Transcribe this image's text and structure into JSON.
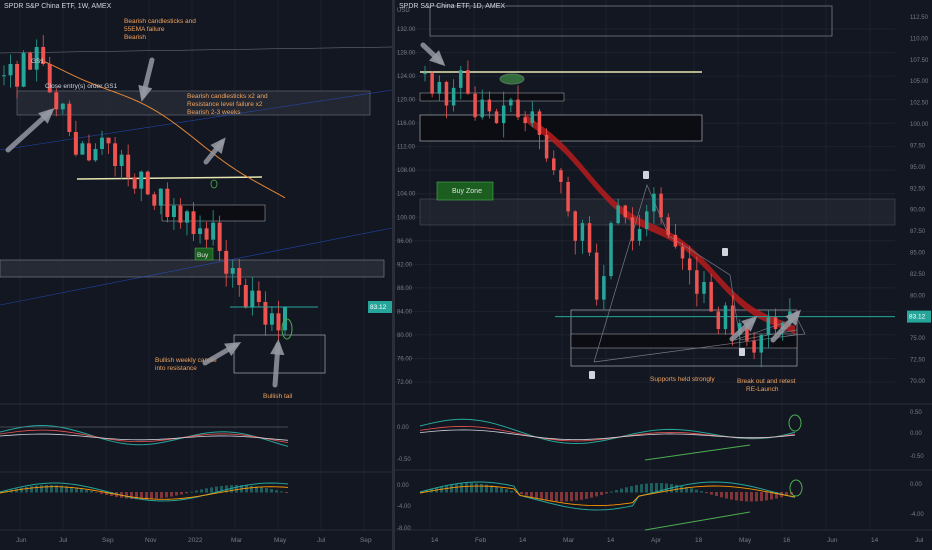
{
  "colors": {
    "background": "#131722",
    "up": "#26a69a",
    "down": "#ef5350",
    "grid": "#1e222d",
    "annotation": "#f0a35e",
    "arrow": "#9598a1",
    "ema_band": "#b71c1c",
    "price_line": "#26a69a",
    "ma_line": "#e0863a"
  },
  "left": {
    "title": "SPDR S&P China ETF, 1W, AMEX",
    "subtitle": "Close entry(s) order GS1",
    "price_badge": "83.12",
    "annotations": {
      "bearish_1": [
        "Bearish candlesticks and",
        "55EMA failure",
        "Bearish"
      ],
      "gs1": "GS1",
      "close_entry": "Close entry(s) order GS1",
      "bearish_2": [
        "Bearish candlesticks x2 and",
        "Resistance level failure x2",
        "Bearish 2-3 weeks"
      ],
      "buy": "Buy",
      "bullish_weekly": [
        "Bullish weekly candle",
        "into resistance"
      ],
      "bullish_tail": "Bullish tail"
    },
    "macd_ticks": [],
    "x_ticks": [
      "Jun",
      "Jul",
      "Sep",
      "Nov",
      "2022",
      "Mar",
      "May",
      "Jul",
      "Sep"
    ]
  },
  "right": {
    "title": "SPDR S&P China ETF, 1D, AMEX",
    "currency": "USD",
    "price_badge": "83.12",
    "annotations": {
      "buy_zone": "Buy Zone",
      "supports": "Supports held strongly",
      "breakout": [
        "Break out and retest",
        "RE-Launch"
      ]
    },
    "chart_data": [
      {
        "type": "line",
        "title": "SPDR S&P China ETF, 1D, AMEX",
        "ylabel": "USD",
        "ylim": [
          70,
          134
        ],
        "y_ticks": [
          "132.00",
          "128.00",
          "124.00",
          "120.00",
          "116.00",
          "112.00",
          "108.00",
          "104.00",
          "100.00",
          "96.00",
          "92.00",
          "88.00",
          "84.00",
          "80.00",
          "76.00",
          "72.00"
        ],
        "right_ticks": [
          "112.50",
          "110.00",
          "107.50",
          "105.00",
          "102.50",
          "100.00",
          "97.50",
          "95.00",
          "92.50",
          "90.00",
          "87.50",
          "85.00",
          "82.50",
          "80.00",
          "77.50",
          "75.00",
          "72.50",
          "70.00"
        ],
        "x_ticks": [
          "14",
          "Feb",
          "14",
          "Mar",
          "14",
          "Apr",
          "18",
          "May",
          "16",
          "Jun",
          "14",
          "Jul"
        ],
        "last_price": 83.12,
        "series": [
          {
            "values": [
              124.5,
              121,
              123,
              119,
              122,
              125,
              121,
              117,
              120,
              118,
              116,
              119,
              120,
              117,
              116,
              118,
              114,
              110,
              108,
              106,
              101,
              96,
              99,
              94,
              86,
              90,
              99,
              102,
              100,
              96,
              98,
              101,
              104,
              100,
              97,
              95,
              93,
              91,
              87,
              89,
              84,
              81,
              85,
              80,
              82,
              79,
              77,
              80,
              83,
              81,
              82,
              84,
              83.12
            ]
          }
        ]
      },
      {
        "type": "line",
        "title": "",
        "y_ticks": [
          "0.00",
          "-0.50"
        ],
        "right_ticks": [
          "0.50",
          "0.00",
          "-0.50"
        ]
      },
      {
        "type": "bar",
        "title": "",
        "y_ticks": [
          "0.00",
          "-4.00",
          "-8.00"
        ],
        "right_ticks": [
          "0.00",
          "-4.00"
        ]
      }
    ]
  }
}
